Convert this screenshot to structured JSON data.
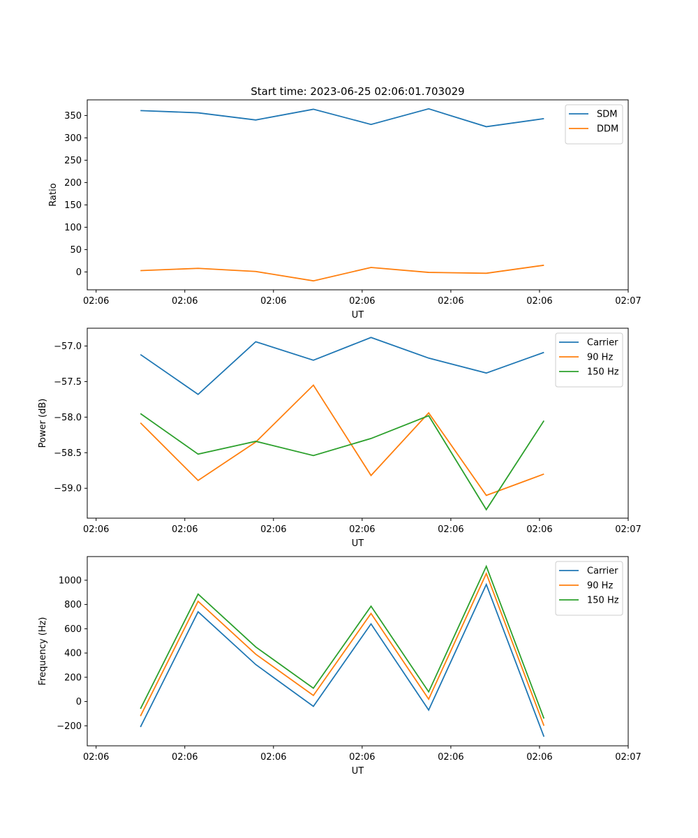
{
  "chart_data": [
    {
      "type": "line",
      "title": "Start time: 2023-06-25 02:06:01.703029",
      "xlabel": "UT",
      "ylabel": "Ratio",
      "x_tick_labels": [
        "02:06",
        "02:06",
        "02:06",
        "02:06",
        "02:06",
        "02:06",
        "02:07"
      ],
      "x_ticks": [
        0,
        2,
        4,
        6,
        8,
        10,
        12
      ],
      "xlim": [
        -0.2,
        12.0
      ],
      "yticks": [
        0,
        50,
        100,
        150,
        200,
        250,
        300,
        350
      ],
      "ylim": [
        -40,
        385
      ],
      "x": [
        1,
        2.3,
        3.6,
        4.9,
        6.2,
        7.5,
        8.8,
        10.1
      ],
      "series": [
        {
          "name": "SDM",
          "color": "#1f77b4",
          "values": [
            361,
            356,
            340,
            364,
            330,
            365,
            325,
            343
          ]
        },
        {
          "name": "DDM",
          "color": "#ff7f0e",
          "values": [
            3,
            8,
            1,
            -20,
            10,
            -1,
            -3,
            15
          ]
        }
      ],
      "legend": "top-right",
      "grid": false
    },
    {
      "type": "line",
      "title": "",
      "xlabel": "UT",
      "ylabel": "Power (dB)",
      "x_tick_labels": [
        "02:06",
        "02:06",
        "02:06",
        "02:06",
        "02:06",
        "02:06",
        "02:07"
      ],
      "x_ticks": [
        0,
        2,
        4,
        6,
        8,
        10,
        12
      ],
      "xlim": [
        -0.2,
        12.0
      ],
      "yticks": [
        -59.0,
        -58.5,
        -58.0,
        -57.5,
        -57.0
      ],
      "ytick_labels": [
        "−59.0",
        "−58.5",
        "−58.0",
        "−57.5",
        "−57.0"
      ],
      "ylim": [
        -59.42,
        -56.75
      ],
      "x": [
        1,
        2.3,
        3.6,
        4.9,
        6.2,
        7.5,
        8.8,
        10.1
      ],
      "series": [
        {
          "name": "Carrier",
          "color": "#1f77b4",
          "values": [
            -57.12,
            -57.68,
            -56.94,
            -57.2,
            -56.88,
            -57.17,
            -57.38,
            -57.09
          ]
        },
        {
          "name": "90 Hz",
          "color": "#ff7f0e",
          "values": [
            -58.08,
            -58.89,
            -58.35,
            -57.55,
            -58.82,
            -57.94,
            -59.1,
            -58.8
          ]
        },
        {
          "name": "150 Hz",
          "color": "#2ca02c",
          "values": [
            -57.95,
            -58.52,
            -58.34,
            -58.54,
            -58.3,
            -57.98,
            -59.3,
            -58.05
          ]
        }
      ],
      "legend": "top-right",
      "grid": false
    },
    {
      "type": "line",
      "title": "",
      "xlabel": "UT",
      "ylabel": "Frequency (Hz)",
      "x_tick_labels": [
        "02:06",
        "02:06",
        "02:06",
        "02:06",
        "02:06",
        "02:06",
        "02:07"
      ],
      "x_ticks": [
        0,
        2,
        4,
        6,
        8,
        10,
        12
      ],
      "xlim": [
        -0.2,
        12.0
      ],
      "yticks": [
        -200,
        0,
        200,
        400,
        600,
        800,
        1000
      ],
      "ytick_labels": [
        "−200",
        "0",
        "200",
        "400",
        "600",
        "800",
        "1000"
      ],
      "ylim": [
        -365,
        1195
      ],
      "x": [
        1,
        2.3,
        3.6,
        4.9,
        6.2,
        7.5,
        8.8,
        10.1
      ],
      "series": [
        {
          "name": "Carrier",
          "color": "#1f77b4",
          "values": [
            -210,
            740,
            305,
            -40,
            640,
            -70,
            965,
            -290
          ]
        },
        {
          "name": "90 Hz",
          "color": "#ff7f0e",
          "values": [
            -120,
            826,
            390,
            50,
            726,
            20,
            1055,
            -200
          ]
        },
        {
          "name": "150 Hz",
          "color": "#2ca02c",
          "values": [
            -60,
            886,
            450,
            110,
            786,
            80,
            1115,
            -140
          ]
        }
      ],
      "legend": "top-right",
      "grid": false
    }
  ]
}
